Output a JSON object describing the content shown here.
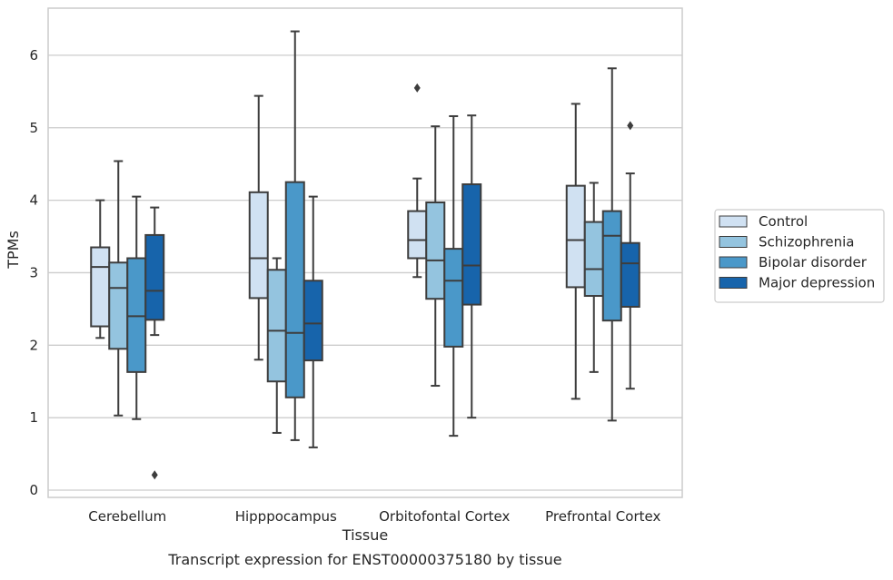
{
  "chart_data": {
    "type": "box",
    "caption": "Transcript expression for ENST00000375180 by tissue",
    "xlabel": "Tissue",
    "ylabel": "TPMs",
    "ylim": [
      -0.1,
      6.65
    ],
    "yticks": [
      0,
      1,
      2,
      3,
      4,
      5,
      6
    ],
    "grid": true,
    "legend_position": "right",
    "categories": [
      "Cerebellum",
      "Hipppocampus",
      "Orbitofontal Cortex",
      "Prefrontal Cortex"
    ],
    "series": [
      {
        "name": "Control",
        "color": "#d0e1f2",
        "boxes": [
          {
            "whislo": 2.1,
            "q1": 2.26,
            "med": 3.08,
            "q3": 3.35,
            "whishi": 4.0,
            "fliers": []
          },
          {
            "whislo": 1.8,
            "q1": 2.65,
            "med": 3.2,
            "q3": 4.11,
            "whishi": 5.44,
            "fliers": []
          },
          {
            "whislo": 2.94,
            "q1": 3.2,
            "med": 3.45,
            "q3": 3.85,
            "whishi": 4.3,
            "fliers": [
              5.55
            ]
          },
          {
            "whislo": 1.26,
            "q1": 2.8,
            "med": 3.45,
            "q3": 4.2,
            "whishi": 5.33,
            "fliers": []
          }
        ]
      },
      {
        "name": "Schizophrenia",
        "color": "#94c4df",
        "boxes": [
          {
            "whislo": 1.03,
            "q1": 1.95,
            "med": 2.79,
            "q3": 3.14,
            "whishi": 4.54,
            "fliers": []
          },
          {
            "whislo": 0.79,
            "q1": 1.5,
            "med": 2.2,
            "q3": 3.04,
            "whishi": 3.2,
            "fliers": []
          },
          {
            "whislo": 1.44,
            "q1": 2.64,
            "med": 3.17,
            "q3": 3.97,
            "whishi": 5.02,
            "fliers": []
          },
          {
            "whislo": 1.63,
            "q1": 2.68,
            "med": 3.05,
            "q3": 3.7,
            "whishi": 4.24,
            "fliers": []
          }
        ]
      },
      {
        "name": "Bipolar disorder",
        "color": "#4a98c9",
        "boxes": [
          {
            "whislo": 0.98,
            "q1": 1.63,
            "med": 2.4,
            "q3": 3.2,
            "whishi": 4.05,
            "fliers": []
          },
          {
            "whislo": 0.69,
            "q1": 1.28,
            "med": 2.17,
            "q3": 4.25,
            "whishi": 6.33,
            "fliers": []
          },
          {
            "whislo": 0.75,
            "q1": 1.98,
            "med": 2.89,
            "q3": 3.33,
            "whishi": 5.16,
            "fliers": []
          },
          {
            "whislo": 0.96,
            "q1": 2.34,
            "med": 3.51,
            "q3": 3.85,
            "whishi": 5.82,
            "fliers": []
          }
        ]
      },
      {
        "name": "Major depression",
        "color": "#1764ab",
        "boxes": [
          {
            "whislo": 2.14,
            "q1": 2.35,
            "med": 2.75,
            "q3": 3.52,
            "whishi": 3.9,
            "fliers": [
              0.21
            ]
          },
          {
            "whislo": 0.59,
            "q1": 1.79,
            "med": 2.3,
            "q3": 2.89,
            "whishi": 4.05,
            "fliers": []
          },
          {
            "whislo": 1.0,
            "q1": 2.56,
            "med": 3.1,
            "q3": 4.22,
            "whishi": 5.17,
            "fliers": []
          },
          {
            "whislo": 1.4,
            "q1": 2.53,
            "med": 3.13,
            "q3": 3.41,
            "whishi": 4.37,
            "fliers": [
              5.03
            ]
          }
        ]
      }
    ]
  }
}
